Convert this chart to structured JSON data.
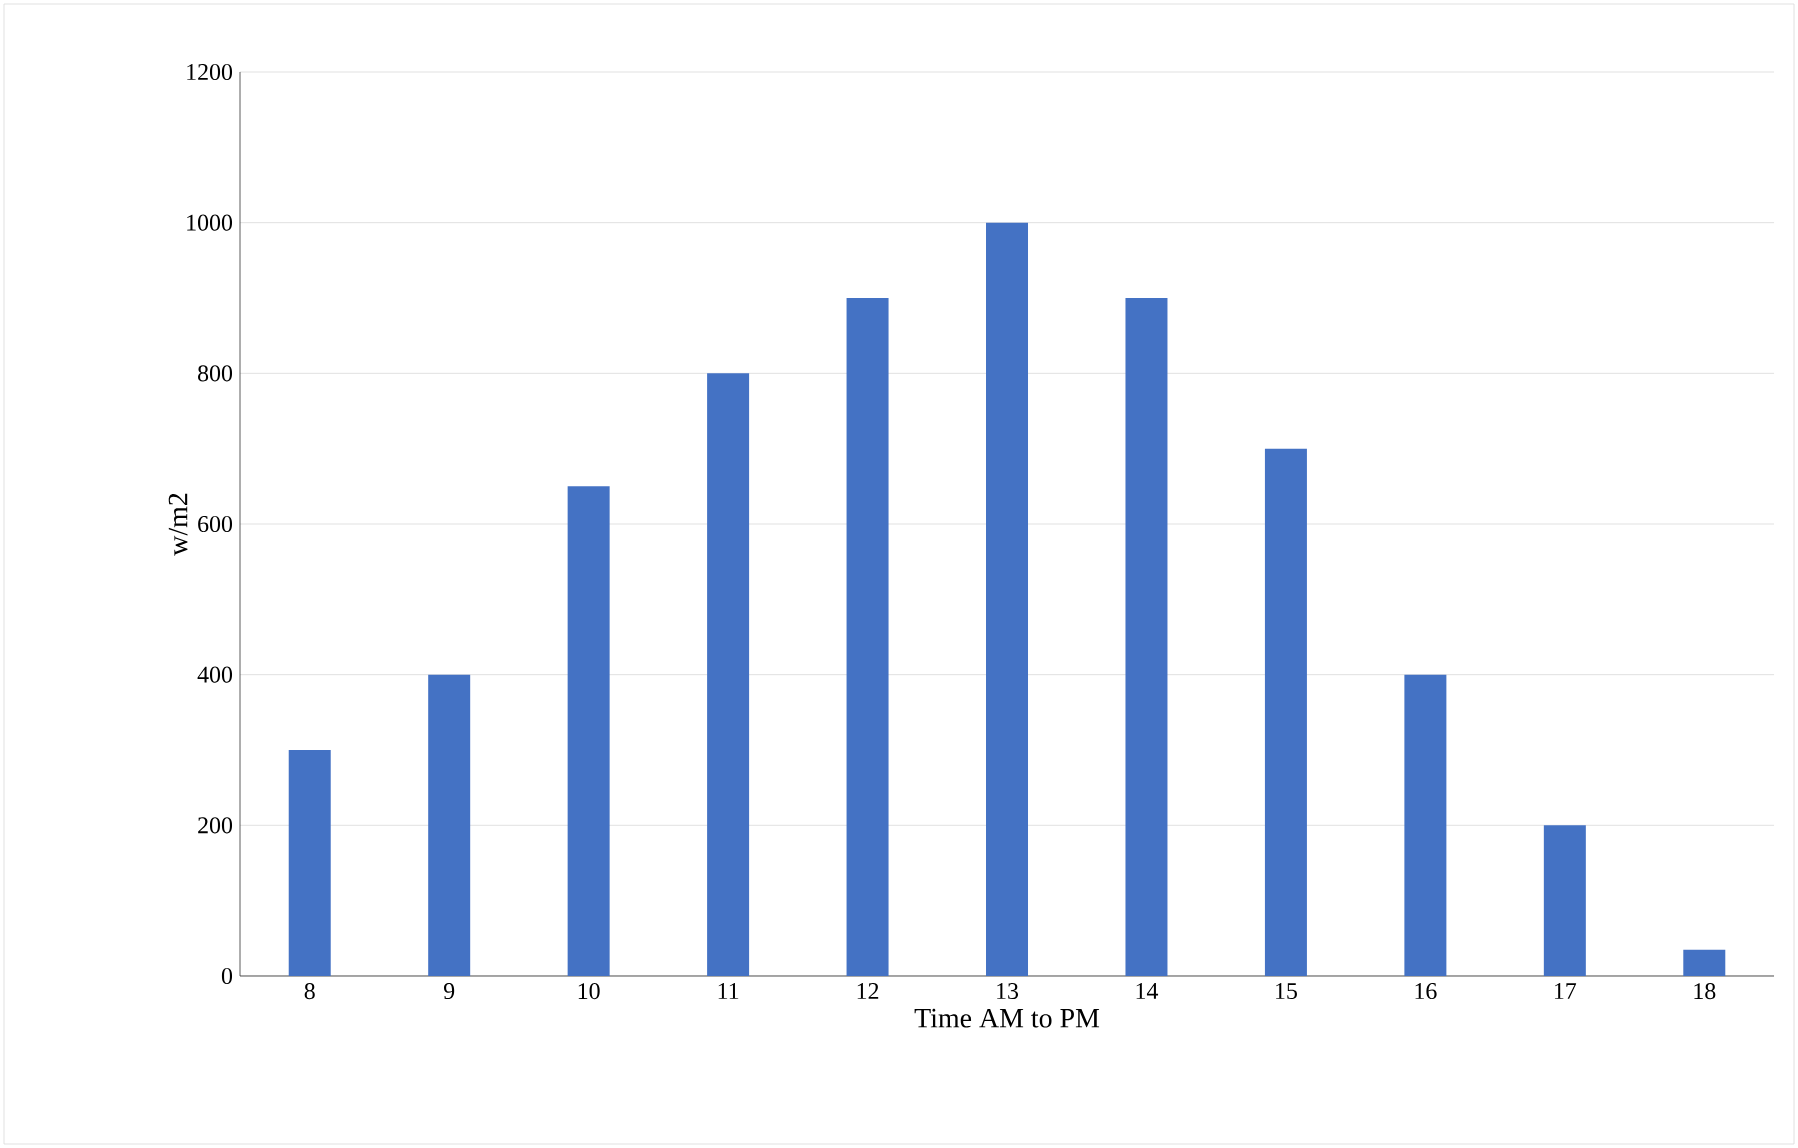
{
  "chart_data": {
    "type": "bar",
    "xlabel": "Time AM to PM",
    "ylabel": "w/m2",
    "categories": [
      "8",
      "9",
      "10",
      "11",
      "12",
      "13",
      "14",
      "15",
      "16",
      "17",
      "18"
    ],
    "values": [
      300,
      400,
      650,
      800,
      900,
      1000,
      900,
      700,
      400,
      200,
      35
    ],
    "color": "#4472c4",
    "ylim": [
      0,
      1200
    ],
    "yticks": [
      0,
      200,
      400,
      600,
      800,
      1000,
      1200
    ],
    "grid": "y"
  }
}
